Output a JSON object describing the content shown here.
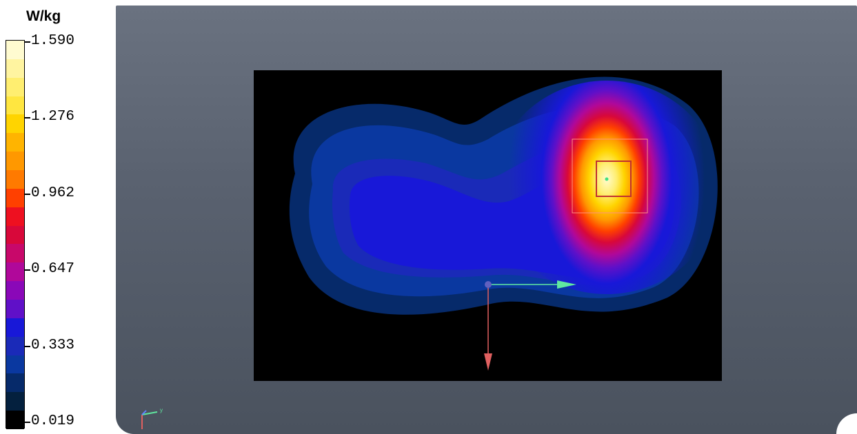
{
  "chart_data": {
    "type": "heatmap",
    "unit": "W/kg",
    "colorbar": {
      "min": 0.019,
      "max": 1.59,
      "tick_labels": [
        "1.590",
        "1.276",
        "0.962",
        "0.647",
        "0.333",
        "0.019"
      ],
      "tick_values": [
        1.59,
        1.276,
        0.962,
        0.647,
        0.333,
        0.019
      ],
      "bands": [
        "#fffbd0",
        "#fff4a0",
        "#ffee70",
        "#ffe640",
        "#ffd400",
        "#ffb400",
        "#ff9800",
        "#ff7a00",
        "#ff4000",
        "#ee1020",
        "#d8083a",
        "#c8086a",
        "#b0089a",
        "#8a08b8",
        "#6010c8",
        "#1818d8",
        "#1a2ab8",
        "#0a38a0",
        "#062a6a",
        "#04203e",
        "#000000"
      ]
    },
    "field": {
      "peak_value": 1.59,
      "peak_location": "right-center"
    },
    "colors": {
      "viewport_bg": "#5a6270",
      "scan_bg": "#000000",
      "axis_x": "#60e8a0",
      "axis_y": "#e06060",
      "marker": "#40e080"
    }
  }
}
